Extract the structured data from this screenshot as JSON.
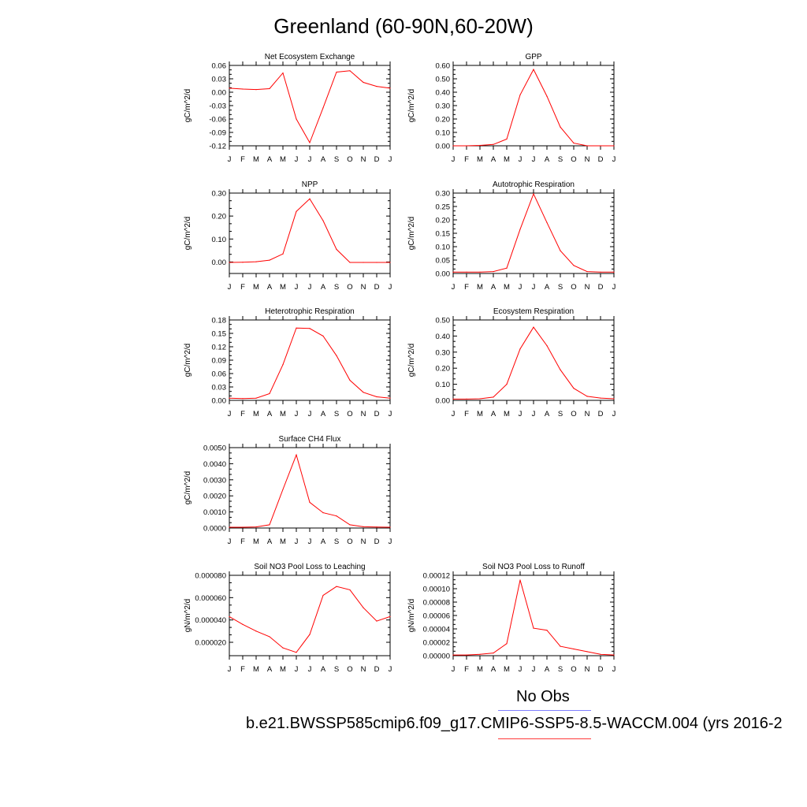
{
  "title": "Greenland (60-90N,60-20W)",
  "months": [
    "J",
    "F",
    "M",
    "A",
    "M",
    "J",
    "J",
    "A",
    "S",
    "O",
    "N",
    "D",
    "J"
  ],
  "legend": {
    "obs_label": "No Obs",
    "case_label": "b.e21.BWSSP585cmip6.f09_g17.CMIP6-SSP5-8.5-WACCM.004 (yrs 2016-2",
    "obs_color": "#7f7fff",
    "case_color": "#ff0000"
  },
  "chart_data": [
    {
      "type": "line",
      "title": "Net Ecosystem Exchange",
      "ylabel": "gC/m^2/d",
      "ylim": [
        -0.12,
        0.06
      ],
      "yticks": [
        -0.12,
        -0.09,
        -0.06,
        -0.03,
        0.0,
        0.03,
        0.06
      ],
      "ytick_labels": [
        "-0.12",
        "-0.09",
        "-0.06",
        "-0.03",
        "0.00",
        "0.03",
        "0.06"
      ],
      "x": [
        "J",
        "F",
        "M",
        "A",
        "M",
        "J",
        "J",
        "A",
        "S",
        "O",
        "N",
        "D",
        "J"
      ],
      "values": [
        0.009,
        0.007,
        0.006,
        0.008,
        0.043,
        -0.06,
        -0.113,
        -0.035,
        0.045,
        0.048,
        0.022,
        0.013,
        0.009
      ]
    },
    {
      "type": "line",
      "title": "GPP",
      "ylabel": "gC/m^2/d",
      "ylim": [
        0.0,
        0.6
      ],
      "yticks": [
        0.0,
        0.1,
        0.2,
        0.3,
        0.4,
        0.5,
        0.6
      ],
      "ytick_labels": [
        "0.00",
        "0.10",
        "0.20",
        "0.30",
        "0.40",
        "0.50",
        "0.60"
      ],
      "x": [
        "J",
        "F",
        "M",
        "A",
        "M",
        "J",
        "J",
        "A",
        "S",
        "O",
        "N",
        "D",
        "J"
      ],
      "values": [
        0.0,
        0.0,
        0.003,
        0.01,
        0.05,
        0.38,
        0.57,
        0.37,
        0.14,
        0.02,
        0.0,
        0.0,
        0.0
      ]
    },
    {
      "type": "line",
      "title": "NPP",
      "ylabel": "gC/m^2/d",
      "ylim": [
        -0.05,
        0.3
      ],
      "yticks": [
        0.0,
        0.1,
        0.2,
        0.3
      ],
      "ytick_labels": [
        "0.00",
        "0.10",
        "0.20",
        "0.30"
      ],
      "x": [
        "J",
        "F",
        "M",
        "A",
        "M",
        "J",
        "J",
        "A",
        "S",
        "O",
        "N",
        "D",
        "J"
      ],
      "values": [
        -0.002,
        -0.001,
        0.001,
        0.008,
        0.035,
        0.22,
        0.275,
        0.18,
        0.055,
        -0.002,
        -0.002,
        -0.002,
        -0.002
      ]
    },
    {
      "type": "line",
      "title": "Autotrophic Respiration",
      "ylabel": "gC/m^2/d",
      "ylim": [
        0.0,
        0.3
      ],
      "yticks": [
        0.0,
        0.05,
        0.1,
        0.15,
        0.2,
        0.25,
        0.3
      ],
      "ytick_labels": [
        "0.00",
        "0.05",
        "0.10",
        "0.15",
        "0.20",
        "0.25",
        "0.30"
      ],
      "x": [
        "J",
        "F",
        "M",
        "A",
        "M",
        "J",
        "J",
        "A",
        "S",
        "O",
        "N",
        "D",
        "J"
      ],
      "values": [
        0.005,
        0.005,
        0.005,
        0.007,
        0.02,
        0.165,
        0.297,
        0.19,
        0.085,
        0.03,
        0.007,
        0.005,
        0.005
      ]
    },
    {
      "type": "line",
      "title": "Heterotrophic Respiration",
      "ylabel": "gC/m^2/d",
      "ylim": [
        0.0,
        0.18
      ],
      "yticks": [
        0.0,
        0.03,
        0.06,
        0.09,
        0.12,
        0.15,
        0.18
      ],
      "ytick_labels": [
        "0.00",
        "0.03",
        "0.06",
        "0.09",
        "0.12",
        "0.15",
        "0.18"
      ],
      "x": [
        "J",
        "F",
        "M",
        "A",
        "M",
        "J",
        "J",
        "A",
        "S",
        "O",
        "N",
        "D",
        "J"
      ],
      "values": [
        0.005,
        0.004,
        0.005,
        0.015,
        0.08,
        0.162,
        0.161,
        0.144,
        0.1,
        0.045,
        0.018,
        0.008,
        0.005
      ]
    },
    {
      "type": "line",
      "title": "Ecosystem Respiration",
      "ylabel": "gC/m^2/d",
      "ylim": [
        0.0,
        0.5
      ],
      "yticks": [
        0.0,
        0.1,
        0.2,
        0.3,
        0.4,
        0.5
      ],
      "ytick_labels": [
        "0.00",
        "0.10",
        "0.20",
        "0.30",
        "0.40",
        "0.50"
      ],
      "x": [
        "J",
        "F",
        "M",
        "A",
        "M",
        "J",
        "J",
        "A",
        "S",
        "O",
        "N",
        "D",
        "J"
      ],
      "values": [
        0.008,
        0.008,
        0.01,
        0.02,
        0.1,
        0.32,
        0.455,
        0.34,
        0.19,
        0.075,
        0.025,
        0.014,
        0.01
      ]
    },
    {
      "type": "line",
      "title": "Surface CH4 Flux",
      "ylabel": "gC/m^2/d",
      "ylim": [
        0.0,
        0.005
      ],
      "yticks": [
        0.0,
        0.001,
        0.002,
        0.003,
        0.004,
        0.005
      ],
      "ytick_labels": [
        "0.0000",
        "0.0010",
        "0.0020",
        "0.0030",
        "0.0040",
        "0.0050"
      ],
      "x": [
        "J",
        "F",
        "M",
        "A",
        "M",
        "J",
        "J",
        "A",
        "S",
        "O",
        "N",
        "D",
        "J"
      ],
      "values": [
        5e-05,
        5e-05,
        7e-05,
        0.0002,
        0.0024,
        0.00455,
        0.0016,
        0.00095,
        0.00075,
        0.0002,
        8e-05,
        6e-05,
        5e-05
      ]
    },
    null,
    {
      "type": "line",
      "title": "Soil NO3 Pool Loss to Leaching",
      "ylabel": "gN/m^2/d",
      "ylim": [
        8e-06,
        8e-05
      ],
      "yticks": [
        2e-05,
        4e-05,
        6e-05,
        8e-05
      ],
      "ytick_labels": [
        "0.000020",
        "0.000040",
        "0.000060",
        "0.000080"
      ],
      "x": [
        "J",
        "F",
        "M",
        "A",
        "M",
        "J",
        "J",
        "A",
        "S",
        "O",
        "N",
        "D",
        "J"
      ],
      "values": [
        4.3e-05,
        3.6e-05,
        3e-05,
        2.5e-05,
        1.5e-05,
        1.1e-05,
        2.7e-05,
        6.2e-05,
        7e-05,
        6.7e-05,
        5.1e-05,
        3.9e-05,
        4.3e-05
      ]
    },
    {
      "type": "line",
      "title": "Soil NO3 Pool Loss to Runoff",
      "ylabel": "gN/m^2/d",
      "ylim": [
        0.0,
        0.00012
      ],
      "yticks": [
        0.0,
        2e-05,
        4e-05,
        6e-05,
        8e-05,
        0.0001,
        0.00012
      ],
      "ytick_labels": [
        "0.00000",
        "0.00002",
        "0.00004",
        "0.00006",
        "0.00008",
        "0.00010",
        "0.00012"
      ],
      "x": [
        "J",
        "F",
        "M",
        "A",
        "M",
        "J",
        "J",
        "A",
        "S",
        "O",
        "N",
        "D",
        "J"
      ],
      "values": [
        1e-06,
        1e-06,
        2e-06,
        4e-06,
        1.8e-05,
        0.000113,
        4.1e-05,
        3.8e-05,
        1.4e-05,
        1e-05,
        6e-06,
        2e-06,
        1e-06
      ]
    }
  ]
}
